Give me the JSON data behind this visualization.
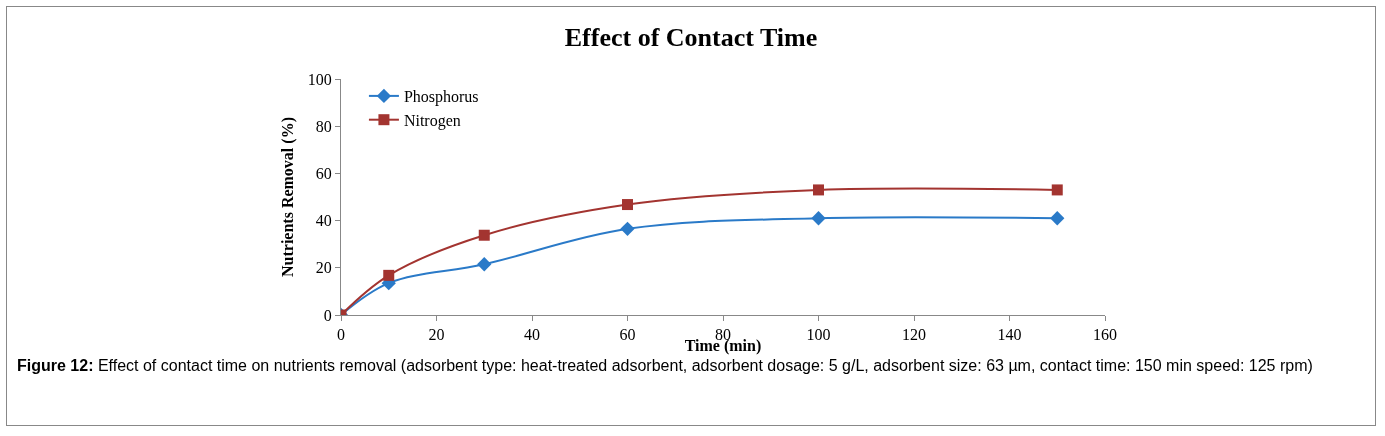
{
  "chart_data": {
    "type": "line",
    "title": "Effect of Contact Time",
    "xlabel": "Time (min)",
    "ylabel": "Nutrients Removal (%)",
    "x": [
      0,
      10,
      30,
      60,
      100,
      150
    ],
    "series": [
      {
        "name": "Phosphorus",
        "color": "#2a7ac8",
        "marker": "diamond",
        "values": [
          0,
          13.5,
          21.5,
          36.5,
          41,
          41
        ]
      },
      {
        "name": "Nitrogen",
        "color": "#a33430",
        "marker": "square",
        "values": [
          0,
          16.8,
          33.8,
          46.8,
          53,
          53
        ]
      }
    ],
    "xlim": [
      0,
      160
    ],
    "xticks": [
      0,
      20,
      40,
      60,
      80,
      100,
      120,
      140,
      160
    ],
    "ylim": [
      0,
      100
    ],
    "yticks": [
      0,
      20,
      40,
      60,
      80,
      100
    ],
    "grid": false,
    "legend": "top left",
    "line_style": "solid",
    "annotations": [
      "Figure 12:",
      "Effect of contact time on nutrients removal (adsorbent type: heat-treated adsorbent, adsorbent dosage: 5 g/L, adsorbent size: 63 µm, contact time: 150 min speed: 125 rpm)"
    ]
  }
}
